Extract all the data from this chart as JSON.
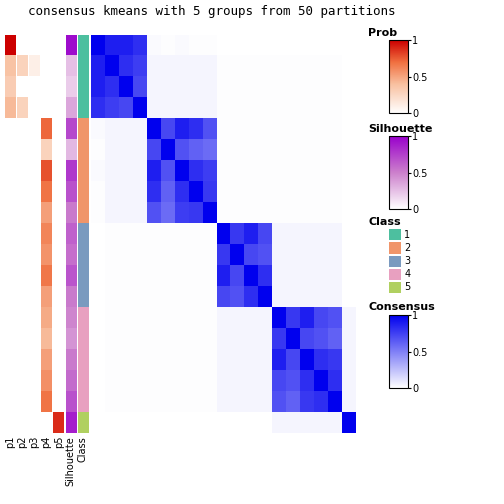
{
  "title": "consensus kmeans with 5 groups from 50 partitions",
  "n_groups": 5,
  "n_samples": 19,
  "class_labels": [
    1,
    1,
    1,
    1,
    2,
    2,
    2,
    2,
    2,
    3,
    3,
    3,
    3,
    4,
    4,
    4,
    4,
    4,
    5
  ],
  "silhouette_values": [
    0.95,
    0.25,
    0.2,
    0.35,
    0.72,
    0.28,
    0.78,
    0.68,
    0.52,
    0.62,
    0.57,
    0.67,
    0.52,
    0.48,
    0.42,
    0.52,
    0.58,
    0.68,
    0.88
  ],
  "prob_p1": [
    1.0,
    0.38,
    0.32,
    0.42,
    0.0,
    0.0,
    0.0,
    0.0,
    0.0,
    0.0,
    0.0,
    0.0,
    0.0,
    0.0,
    0.0,
    0.0,
    0.0,
    0.0,
    0.0
  ],
  "prob_p2": [
    0.0,
    0.28,
    0.0,
    0.28,
    0.0,
    0.0,
    0.0,
    0.0,
    0.0,
    0.0,
    0.0,
    0.0,
    0.0,
    0.0,
    0.0,
    0.0,
    0.0,
    0.0,
    0.0
  ],
  "prob_p3": [
    0.0,
    0.1,
    0.0,
    0.0,
    0.0,
    0.0,
    0.0,
    0.0,
    0.0,
    0.0,
    0.0,
    0.0,
    0.0,
    0.0,
    0.0,
    0.0,
    0.0,
    0.0,
    0.0
  ],
  "prob_p4": [
    0.0,
    0.0,
    0.0,
    0.0,
    0.72,
    0.28,
    0.78,
    0.68,
    0.52,
    0.62,
    0.57,
    0.67,
    0.52,
    0.48,
    0.42,
    0.52,
    0.58,
    0.68,
    0.0
  ],
  "prob_p5": [
    0.0,
    0.0,
    0.0,
    0.0,
    0.0,
    0.0,
    0.0,
    0.0,
    0.0,
    0.0,
    0.0,
    0.0,
    0.0,
    0.0,
    0.0,
    0.0,
    0.0,
    0.0,
    0.88
  ],
  "class_colors": {
    "1": "#4dbf9f",
    "2": "#f0956a",
    "3": "#7a9abf",
    "4": "#e8a0c0",
    "5": "#b0d060"
  },
  "consensus_matrix": [
    [
      1.0,
      0.88,
      0.88,
      0.82,
      0.02,
      0.01,
      0.02,
      0.01,
      0.01,
      0.0,
      0.0,
      0.0,
      0.0,
      0.0,
      0.0,
      0.0,
      0.0,
      0.0,
      0.0
    ],
    [
      0.88,
      1.0,
      0.82,
      0.76,
      0.04,
      0.04,
      0.04,
      0.04,
      0.04,
      0.01,
      0.01,
      0.01,
      0.01,
      0.01,
      0.01,
      0.01,
      0.01,
      0.01,
      0.0
    ],
    [
      0.88,
      0.82,
      1.0,
      0.72,
      0.04,
      0.04,
      0.04,
      0.04,
      0.04,
      0.01,
      0.01,
      0.01,
      0.01,
      0.01,
      0.01,
      0.01,
      0.01,
      0.01,
      0.0
    ],
    [
      0.82,
      0.76,
      0.72,
      1.0,
      0.04,
      0.04,
      0.04,
      0.04,
      0.04,
      0.01,
      0.01,
      0.01,
      0.01,
      0.01,
      0.01,
      0.01,
      0.01,
      0.01,
      0.0
    ],
    [
      0.02,
      0.04,
      0.04,
      0.04,
      1.0,
      0.72,
      0.88,
      0.82,
      0.68,
      0.01,
      0.01,
      0.01,
      0.01,
      0.01,
      0.01,
      0.01,
      0.01,
      0.01,
      0.0
    ],
    [
      0.01,
      0.04,
      0.04,
      0.04,
      0.72,
      1.0,
      0.68,
      0.62,
      0.58,
      0.01,
      0.01,
      0.01,
      0.01,
      0.01,
      0.01,
      0.01,
      0.01,
      0.01,
      0.0
    ],
    [
      0.02,
      0.04,
      0.04,
      0.04,
      0.88,
      0.68,
      1.0,
      0.82,
      0.76,
      0.01,
      0.01,
      0.01,
      0.01,
      0.01,
      0.01,
      0.01,
      0.01,
      0.01,
      0.0
    ],
    [
      0.01,
      0.04,
      0.04,
      0.04,
      0.82,
      0.62,
      0.82,
      1.0,
      0.78,
      0.01,
      0.01,
      0.01,
      0.01,
      0.01,
      0.01,
      0.01,
      0.01,
      0.01,
      0.0
    ],
    [
      0.01,
      0.04,
      0.04,
      0.04,
      0.68,
      0.58,
      0.76,
      0.78,
      1.0,
      0.01,
      0.01,
      0.01,
      0.01,
      0.01,
      0.01,
      0.01,
      0.01,
      0.01,
      0.0
    ],
    [
      0.0,
      0.01,
      0.01,
      0.01,
      0.01,
      0.01,
      0.01,
      0.01,
      0.01,
      1.0,
      0.78,
      0.88,
      0.72,
      0.04,
      0.04,
      0.04,
      0.04,
      0.04,
      0.0
    ],
    [
      0.0,
      0.01,
      0.01,
      0.01,
      0.01,
      0.01,
      0.01,
      0.01,
      0.01,
      0.78,
      1.0,
      0.72,
      0.68,
      0.04,
      0.04,
      0.04,
      0.04,
      0.04,
      0.0
    ],
    [
      0.0,
      0.01,
      0.01,
      0.01,
      0.01,
      0.01,
      0.01,
      0.01,
      0.01,
      0.88,
      0.72,
      1.0,
      0.82,
      0.04,
      0.04,
      0.04,
      0.04,
      0.04,
      0.0
    ],
    [
      0.0,
      0.01,
      0.01,
      0.01,
      0.01,
      0.01,
      0.01,
      0.01,
      0.01,
      0.72,
      0.68,
      0.82,
      1.0,
      0.04,
      0.04,
      0.04,
      0.04,
      0.04,
      0.0
    ],
    [
      0.0,
      0.01,
      0.01,
      0.01,
      0.01,
      0.01,
      0.01,
      0.01,
      0.01,
      0.04,
      0.04,
      0.04,
      0.04,
      1.0,
      0.78,
      0.88,
      0.72,
      0.68,
      0.04
    ],
    [
      0.0,
      0.01,
      0.01,
      0.01,
      0.01,
      0.01,
      0.01,
      0.01,
      0.01,
      0.04,
      0.04,
      0.04,
      0.04,
      0.78,
      1.0,
      0.72,
      0.68,
      0.62,
      0.04
    ],
    [
      0.0,
      0.01,
      0.01,
      0.01,
      0.01,
      0.01,
      0.01,
      0.01,
      0.01,
      0.04,
      0.04,
      0.04,
      0.04,
      0.88,
      0.72,
      1.0,
      0.82,
      0.78,
      0.04
    ],
    [
      0.0,
      0.01,
      0.01,
      0.01,
      0.01,
      0.01,
      0.01,
      0.01,
      0.01,
      0.04,
      0.04,
      0.04,
      0.04,
      0.72,
      0.68,
      0.82,
      1.0,
      0.82,
      0.04
    ],
    [
      0.0,
      0.01,
      0.01,
      0.01,
      0.01,
      0.01,
      0.01,
      0.01,
      0.01,
      0.04,
      0.04,
      0.04,
      0.04,
      0.68,
      0.62,
      0.78,
      0.82,
      1.0,
      0.04
    ],
    [
      0.0,
      0.0,
      0.0,
      0.0,
      0.0,
      0.0,
      0.0,
      0.0,
      0.0,
      0.0,
      0.0,
      0.0,
      0.0,
      0.04,
      0.04,
      0.04,
      0.04,
      0.04,
      1.0
    ]
  ],
  "legend_prob_label": "Prob",
  "legend_sil_label": "Silhouette",
  "legend_class_label": "Class",
  "legend_consensus_label": "Consensus",
  "class_legend": [
    [
      "1",
      "#4dbf9f"
    ],
    [
      "2",
      "#f0956a"
    ],
    [
      "3",
      "#7a9abf"
    ],
    [
      "4",
      "#e8a0c0"
    ],
    [
      "5",
      "#b0d060"
    ]
  ]
}
